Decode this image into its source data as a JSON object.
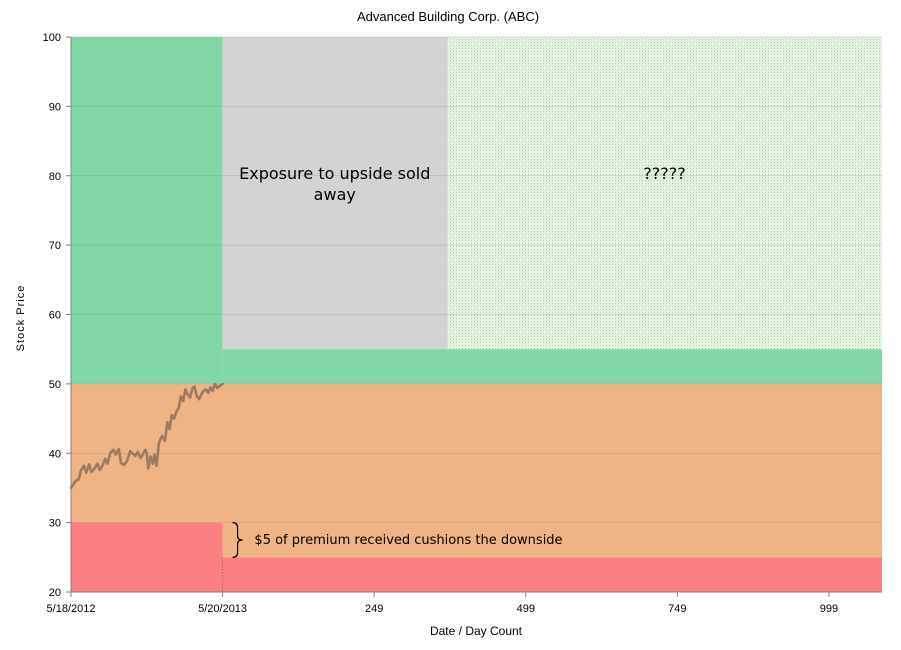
{
  "chart_data": {
    "type": "area",
    "title": "Advanced Building Corp. (ABC)",
    "xlabel": "Date / Day Count",
    "ylabel": "Stock Price",
    "ylim": [
      20,
      100
    ],
    "yticks": [
      20,
      30,
      40,
      50,
      60,
      70,
      80,
      90,
      100
    ],
    "xlim": [
      0,
      1070
    ],
    "xticks": [
      {
        "x": 0,
        "label": "5/18/2012"
      },
      {
        "x": 200,
        "label": "5/20/2013"
      },
      {
        "x": 400,
        "label": "249"
      },
      {
        "x": 600,
        "label": "499"
      },
      {
        "x": 800,
        "label": "749"
      },
      {
        "x": 1000,
        "label": "999"
      }
    ],
    "grid": true,
    "regions": [
      {
        "x": [
          0,
          200
        ],
        "y": [
          50,
          100
        ],
        "color": "#81d8a6"
      },
      {
        "x": [
          200,
          497
        ],
        "y": [
          55,
          100
        ],
        "color": "#d3d3d3"
      },
      {
        "x": [
          497,
          1070
        ],
        "y": [
          55,
          100
        ],
        "color": "#e6f4e0",
        "pattern": "dots"
      },
      {
        "x": [
          200,
          1070
        ],
        "y": [
          50,
          55
        ],
        "color": "#81d8a6"
      },
      {
        "x": [
          0,
          1070
        ],
        "y": [
          30,
          50
        ],
        "color": "#f0b384"
      },
      {
        "x": [
          200,
          1070
        ],
        "y": [
          25,
          30
        ],
        "color": "#f0b384"
      },
      {
        "x": [
          0,
          200
        ],
        "y": [
          20,
          30
        ],
        "color": "#fc8082"
      },
      {
        "x": [
          200,
          1070
        ],
        "y": [
          20,
          25
        ],
        "color": "#fc8082"
      }
    ],
    "series": [
      {
        "color": "#9a7b63",
        "x": [
          0,
          3,
          6,
          10,
          13,
          17,
          20,
          24,
          27,
          31,
          35,
          38,
          42,
          45,
          48,
          52,
          56,
          59,
          63,
          66,
          70,
          74,
          78,
          81,
          85,
          88,
          92,
          95,
          98,
          100,
          102,
          105,
          108,
          110,
          113,
          116,
          120,
          124,
          127,
          130,
          133,
          136,
          139,
          142,
          145,
          148,
          151,
          154,
          157,
          160,
          163,
          166,
          169,
          172,
          175,
          178,
          181,
          184,
          187,
          190,
          193,
          196,
          200
        ],
        "values": [
          35,
          35.5,
          36,
          36.2,
          37.5,
          38.2,
          37.2,
          38.4,
          37.3,
          37.8,
          38.5,
          37.6,
          38.3,
          39.2,
          38.5,
          40.1,
          40.5,
          39.8,
          40.6,
          38.6,
          38.3,
          38.9,
          40.3,
          40.0,
          39.6,
          40.2,
          39.3,
          39.9,
          40.5,
          40.0,
          37.8,
          39.5,
          38.5,
          39.8,
          38.2,
          41.5,
          42.5,
          41.8,
          44.5,
          43.5,
          45.5,
          45.0,
          46.0,
          46.5,
          48.2,
          47.5,
          49.2,
          48.5,
          48.0,
          49.3,
          49.6,
          48.2,
          47.8,
          48.5,
          49.0,
          49.2,
          48.7,
          49.5,
          49.0,
          50.0,
          49.4,
          49.7,
          50.0
        ]
      }
    ],
    "annotations": [
      {
        "text_lines": [
          "Exposure to upside sold",
          "away"
        ],
        "x": 348,
        "y": 79.5
      },
      {
        "text_lines": [
          "?????"
        ],
        "x": 783,
        "y": 79.5
      },
      {
        "text_lines": [
          "$5 of premium received cushions the downside"
        ],
        "x": 242,
        "y": 27.5
      }
    ],
    "brace": {
      "x": 200,
      "y": [
        25,
        30
      ]
    }
  }
}
